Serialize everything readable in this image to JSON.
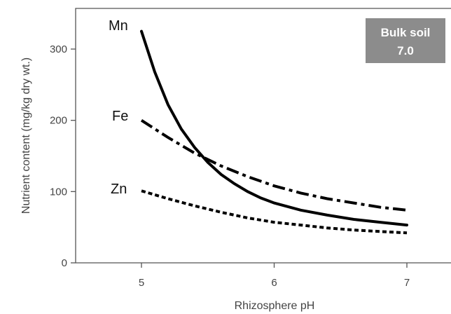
{
  "chart_data": {
    "type": "line",
    "xlabel": "Rhizosphere pH",
    "ylabel": "Nutrient content (mg/kg dry wt.)",
    "xlim": [
      4.5,
      7.2
    ],
    "ylim": [
      0,
      355
    ],
    "xticks": [
      5,
      6,
      7
    ],
    "yticks": [
      0,
      100,
      200,
      300
    ],
    "grid": false,
    "annotation": {
      "lines": [
        "Bulk soil",
        "7.0"
      ],
      "position": "top-right",
      "background": "#8c8c8c",
      "color": "#ffffff"
    },
    "series": [
      {
        "name": "Mn",
        "style": "solid",
        "color": "#000000",
        "x": [
          5.0,
          5.1,
          5.2,
          5.3,
          5.4,
          5.5,
          5.6,
          5.7,
          5.8,
          5.9,
          6.0,
          6.2,
          6.4,
          6.6,
          6.8,
          7.0
        ],
        "y": [
          325,
          268,
          222,
          188,
          162,
          141,
          124,
          111,
          100,
          91,
          84,
          74,
          67,
          61,
          57,
          53
        ]
      },
      {
        "name": "Fe",
        "style": "dash-dot",
        "color": "#000000",
        "x": [
          5.0,
          5.2,
          5.4,
          5.6,
          5.8,
          6.0,
          6.2,
          6.4,
          6.6,
          6.8,
          7.0
        ],
        "y": [
          200,
          176,
          154,
          136,
          121,
          108,
          98,
          90,
          84,
          78,
          74
        ]
      },
      {
        "name": "Zn",
        "style": "dotted",
        "color": "#000000",
        "x": [
          5.0,
          5.2,
          5.4,
          5.6,
          5.8,
          6.0,
          6.2,
          6.4,
          6.6,
          6.8,
          7.0
        ],
        "y": [
          101,
          90,
          80,
          71,
          63,
          57,
          53,
          49,
          46,
          44,
          42
        ]
      }
    ]
  }
}
